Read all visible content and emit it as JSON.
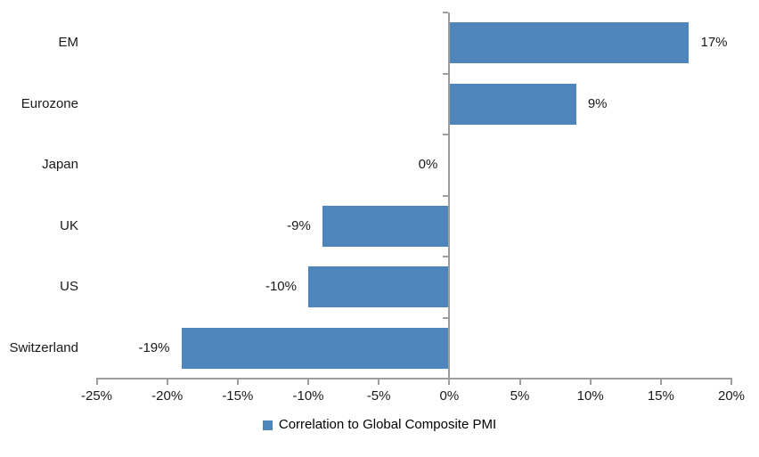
{
  "chart_data": {
    "type": "bar",
    "orientation": "horizontal",
    "title": "",
    "categories": [
      "EM",
      "Eurozone",
      "Japan",
      "UK",
      "US",
      "Switzerland"
    ],
    "values": [
      17,
      9,
      0,
      -9,
      -10,
      -19
    ],
    "value_labels": [
      "17%",
      "9%",
      "0%",
      "-9%",
      "-10%",
      "-19%"
    ],
    "legend": "Correlation to Global Composite PMI",
    "legend_position": "bottom-center",
    "xlim": [
      -25,
      20
    ],
    "x_ticks": [
      -25,
      -20,
      -15,
      -10,
      -5,
      0,
      5,
      10,
      15,
      20
    ],
    "x_tick_labels": [
      "-25%",
      "-20%",
      "-15%",
      "-10%",
      "-5%",
      "0%",
      "5%",
      "10%",
      "15%",
      "20%"
    ],
    "grid": false,
    "colors": {
      "bar": "#4e86bc",
      "axis": "#9e9e9e",
      "text": "#1a1a1a"
    }
  }
}
